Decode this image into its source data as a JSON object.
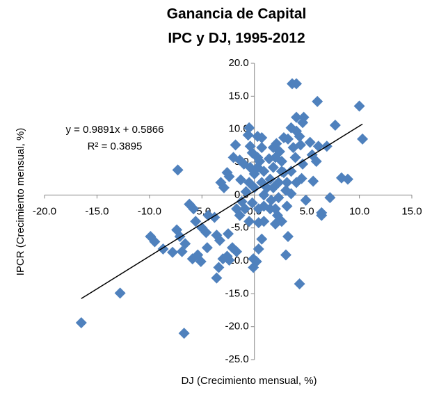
{
  "chart_data": {
    "type": "scatter",
    "title": "Ganancia de Capital",
    "subtitle": "IPC y DJ, 1995-2012",
    "x_label": "DJ (Crecimiento mensual, %)",
    "y_label": "IPCR (Crecimiento mensual, %)",
    "color": "#4f81bd",
    "trendline": {
      "slope": 0.9891,
      "intercept": 0.5866,
      "equation": "y = 0.9891x + 0.5866",
      "r2": "R² = 0.3895",
      "color": "#000000"
    },
    "xlim": [
      -20,
      15
    ],
    "ylim": [
      -25,
      20
    ],
    "xticks": [
      {
        "value": -20,
        "label": "-20.0"
      },
      {
        "value": -15,
        "label": "-15.0"
      },
      {
        "value": -10,
        "label": "-10.0"
      },
      {
        "value": -5,
        "label": "-5.0"
      },
      {
        "value": 0,
        "label": "0.0"
      },
      {
        "value": 5,
        "label": "5.0"
      },
      {
        "value": 10,
        "label": "10.0"
      },
      {
        "value": 15,
        "label": "15.0"
      }
    ],
    "yticks": [
      {
        "value": -25,
        "label": "-25.0"
      },
      {
        "value": -20,
        "label": "-20.0"
      },
      {
        "value": -15,
        "label": "-15.0"
      },
      {
        "value": -10,
        "label": "-10.0"
      },
      {
        "value": -5,
        "label": "-5.0"
      },
      {
        "value": 0,
        "label": "0.0"
      },
      {
        "value": 5,
        "label": "5.0"
      },
      {
        "value": 10,
        "label": "10.0"
      },
      {
        "value": 15,
        "label": "15.0"
      },
      {
        "value": 20,
        "label": "20.0"
      }
    ],
    "x": [
      -16.5,
      -12.8,
      -6.7,
      -7.3,
      -9.9,
      -9.5,
      -8.7,
      -7.4,
      -7.1,
      -6.9,
      -6.6,
      -7.8,
      -5.9,
      -5.4,
      -5.1,
      -6.2,
      -5.8,
      -5.6,
      -5.0,
      -4.5,
      -4.6,
      -3.8,
      -4.4,
      -3.6,
      -3.3,
      -3.6,
      -3.4,
      -3.0,
      -2.6,
      -2.4,
      -2.5,
      -2.1,
      -1.7,
      -3.2,
      -2.9,
      -2.6,
      -2.4,
      -1.8,
      -2.0,
      -1.4,
      -1.0,
      -0.5,
      -0.6,
      -0.4,
      -0.2,
      -0.8,
      -1.2,
      -1.7,
      -1.4,
      -0.9,
      -0.5,
      -0.2,
      -0.1,
      -0.1,
      0.2,
      0.4,
      0.7,
      0.4,
      0.9,
      0.4,
      0.9,
      0.3,
      0.3,
      0.0,
      0.5,
      0.9,
      0.7,
      1.2,
      1.5,
      1.8,
      2.0,
      1.4,
      1.8,
      0.7,
      0.7,
      0.3,
      2.1,
      2.4,
      2.6,
      2.8,
      3.1,
      3.0,
      2.3,
      1.6,
      2.2,
      2.0,
      2.6,
      3.1,
      3.5,
      3.5,
      3.9,
      3.7,
      3.2,
      2.8,
      3.5,
      4.0,
      4.3,
      4.0,
      4.6,
      4.7,
      3.6,
      4.0,
      4.4,
      4.6,
      4.5,
      4.0,
      4.9,
      3.2,
      3.0,
      4.3,
      5.3,
      5.5,
      5.6,
      5.9,
      6.1,
      6.4,
      6.4,
      6.0,
      6.9,
      7.2,
      7.7,
      8.3,
      8.9,
      10.0,
      10.3,
      2.6,
      -0.4,
      0.0,
      0.9,
      1.8,
      2.3,
      1.5,
      2.0,
      -1.3,
      -0.5
    ],
    "values": [
      -19.4,
      -14.9,
      -21.0,
      3.8,
      -6.3,
      -7.1,
      -8.2,
      -5.3,
      -6.3,
      -8.6,
      -7.4,
      -8.7,
      -9.7,
      -9.1,
      -10.1,
      -1.4,
      -2.1,
      -4.0,
      -5.0,
      -8.0,
      -5.7,
      -3.4,
      -3.1,
      -6.1,
      -6.9,
      -12.6,
      -11.0,
      -9.7,
      -9.3,
      -9.9,
      -5.9,
      -8.0,
      -8.6,
      1.9,
      1.1,
      3.4,
      2.8,
      7.6,
      5.7,
      5.3,
      4.7,
      10.2,
      9.1,
      7.4,
      6.4,
      0.5,
      -1.0,
      -2.1,
      -3.1,
      -2.1,
      -4.0,
      -1.2,
      -9.7,
      -11.0,
      -10.1,
      -8.2,
      -6.7,
      -4.2,
      -4.0,
      -2.1,
      -1.7,
      4.2,
      5.7,
      3.2,
      5.1,
      3.6,
      1.9,
      1.1,
      2.4,
      4.2,
      5.7,
      5.5,
      7.2,
      7.2,
      8.7,
      8.9,
      7.8,
      6.6,
      5.1,
      3.4,
      1.9,
      0.7,
      -0.4,
      -0.8,
      -3.1,
      -4.4,
      -4.0,
      -1.7,
      0.2,
      3.6,
      5.7,
      7.2,
      8.5,
      8.7,
      10.2,
      9.7,
      8.9,
      11.8,
      11.0,
      11.8,
      16.9,
      16.9,
      7.6,
      4.7,
      2.5,
      1.9,
      -0.8,
      -6.3,
      -9.1,
      -13.5,
      8.0,
      6.1,
      2.1,
      5.1,
      7.4,
      -2.7,
      -3.1,
      14.2,
      7.4,
      -0.4,
      10.6,
      2.6,
      2.4,
      13.5,
      8.5,
      3.6,
      4.2,
      1.1,
      0.0,
      1.1,
      1.9,
      -2.1,
      -2.1,
      2.3,
      1.9
    ]
  }
}
